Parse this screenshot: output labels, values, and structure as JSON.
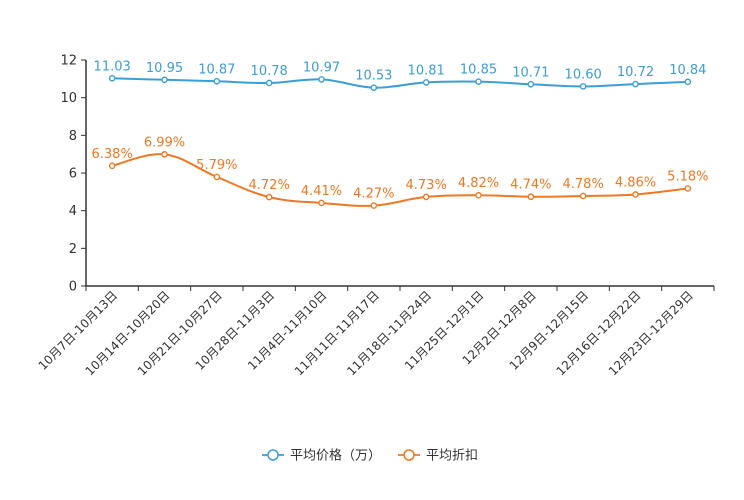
{
  "chart_data": {
    "type": "line",
    "categories": [
      "10月7日-10月13日",
      "10月14日-10月20日",
      "10月21日-10月27日",
      "10月28日-11月3日",
      "11月4日-11月10日",
      "11月11日-11月17日",
      "11月18日-11月24日",
      "11月25日-12月1日",
      "12月2日-12月8日",
      "12月9日-12月15日",
      "12月16日-12月22日",
      "12月23日-12月29日"
    ],
    "ylim": [
      0,
      12
    ],
    "yticks": [
      "0",
      "2",
      "4",
      "6",
      "8",
      "10",
      "12"
    ],
    "series": [
      {
        "name": "平均价格（万）",
        "color": "#3c9ed6",
        "values": [
          11.03,
          10.95,
          10.87,
          10.78,
          10.97,
          10.53,
          10.81,
          10.85,
          10.71,
          10.6,
          10.72,
          10.84
        ],
        "labels": [
          "11.03",
          "10.95",
          "10.87",
          "10.78",
          "10.97",
          "10.53",
          "10.81",
          "10.85",
          "10.71",
          "10.60",
          "10.72",
          "10.84"
        ]
      },
      {
        "name": "平均折扣",
        "color": "#f07822",
        "values": [
          6.38,
          6.99,
          5.79,
          4.72,
          4.41,
          4.27,
          4.73,
          4.82,
          4.74,
          4.78,
          4.86,
          5.18
        ],
        "labels": [
          "6.38%",
          "6.99%",
          "5.79%",
          "4.72%",
          "4.41%",
          "4.27%",
          "4.73%",
          "4.82%",
          "4.74%",
          "4.78%",
          "4.86%",
          "5.18%"
        ]
      }
    ],
    "legend_position": "bottom-center",
    "smooth": true
  }
}
